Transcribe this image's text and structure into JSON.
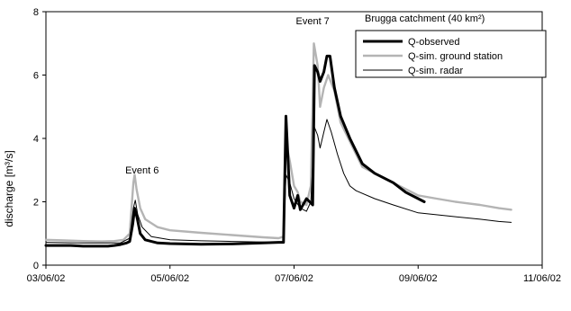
{
  "chart_data": {
    "type": "line",
    "title": "",
    "annotation": "Brugga catchment (40 km²)",
    "xlabel": "",
    "ylabel": "discharge [m³/s]",
    "x_ticks": [
      "03/06/02",
      "05/06/02",
      "07/06/02",
      "09/06/02",
      "11/06/02"
    ],
    "y_ticks": [
      "0",
      "2",
      "4",
      "6",
      "8"
    ],
    "xlim": [
      0,
      8
    ],
    "ylim": [
      0,
      8
    ],
    "x_unit": "days since 03/06/02",
    "grid": false,
    "legend_position": "top-right",
    "events": [
      {
        "label": "Event 6",
        "x": 1.55,
        "y": 2.9
      },
      {
        "label": "Event 7",
        "x": 4.3,
        "y": 7.6
      }
    ],
    "series": [
      {
        "name": "Q-observed",
        "color": "#000000",
        "style": "thick",
        "points": [
          [
            0,
            0.62
          ],
          [
            0.4,
            0.62
          ],
          [
            0.6,
            0.6
          ],
          [
            0.8,
            0.6
          ],
          [
            1.0,
            0.6
          ],
          [
            1.1,
            0.62
          ],
          [
            1.2,
            0.65
          ],
          [
            1.3,
            0.7
          ],
          [
            1.35,
            0.75
          ],
          [
            1.4,
            1.3
          ],
          [
            1.43,
            1.8
          ],
          [
            1.47,
            1.5
          ],
          [
            1.52,
            1.0
          ],
          [
            1.6,
            0.8
          ],
          [
            1.8,
            0.7
          ],
          [
            2.0,
            0.68
          ],
          [
            2.5,
            0.66
          ],
          [
            3.0,
            0.67
          ],
          [
            3.5,
            0.7
          ],
          [
            3.75,
            0.72
          ],
          [
            3.83,
            0.72
          ],
          [
            3.87,
            4.7
          ],
          [
            3.93,
            2.2
          ],
          [
            4.0,
            1.8
          ],
          [
            4.06,
            2.2
          ],
          [
            4.1,
            1.75
          ],
          [
            4.2,
            2.1
          ],
          [
            4.3,
            1.9
          ],
          [
            4.33,
            6.3
          ],
          [
            4.38,
            6.1
          ],
          [
            4.42,
            5.8
          ],
          [
            4.48,
            6.1
          ],
          [
            4.53,
            6.6
          ],
          [
            4.58,
            6.6
          ],
          [
            4.65,
            5.6
          ],
          [
            4.75,
            4.7
          ],
          [
            4.9,
            4.0
          ],
          [
            5.1,
            3.2
          ],
          [
            5.3,
            2.9
          ],
          [
            5.6,
            2.6
          ],
          [
            5.8,
            2.3
          ],
          [
            6.0,
            2.1
          ],
          [
            6.1,
            2.0
          ]
        ]
      },
      {
        "name": "Q-sim. ground station",
        "color": "#b4b4b4",
        "style": "medium",
        "points": [
          [
            0,
            0.8
          ],
          [
            0.3,
            0.78
          ],
          [
            0.6,
            0.76
          ],
          [
            0.9,
            0.75
          ],
          [
            1.1,
            0.76
          ],
          [
            1.25,
            0.8
          ],
          [
            1.35,
            1.0
          ],
          [
            1.41,
            2.6
          ],
          [
            1.43,
            2.85
          ],
          [
            1.46,
            2.4
          ],
          [
            1.52,
            1.8
          ],
          [
            1.6,
            1.45
          ],
          [
            1.8,
            1.2
          ],
          [
            2.0,
            1.1
          ],
          [
            2.5,
            1.02
          ],
          [
            3.0,
            0.95
          ],
          [
            3.5,
            0.88
          ],
          [
            3.75,
            0.85
          ],
          [
            3.83,
            0.9
          ],
          [
            3.87,
            3.9
          ],
          [
            3.93,
            3.3
          ],
          [
            4.0,
            2.5
          ],
          [
            4.06,
            2.3
          ],
          [
            4.1,
            2.0
          ],
          [
            4.2,
            1.9
          ],
          [
            4.27,
            2.5
          ],
          [
            4.32,
            7.0
          ],
          [
            4.38,
            6.3
          ],
          [
            4.42,
            5.0
          ],
          [
            4.48,
            5.6
          ],
          [
            4.55,
            6.0
          ],
          [
            4.65,
            5.5
          ],
          [
            4.75,
            4.5
          ],
          [
            4.9,
            3.9
          ],
          [
            5.1,
            3.1
          ],
          [
            5.3,
            2.9
          ],
          [
            5.6,
            2.6
          ],
          [
            6.0,
            2.2
          ],
          [
            6.3,
            2.1
          ],
          [
            6.6,
            2.0
          ],
          [
            7.0,
            1.9
          ],
          [
            7.3,
            1.8
          ],
          [
            7.5,
            1.75
          ]
        ]
      },
      {
        "name": "Q-sim. radar",
        "color": "#000000",
        "style": "thin",
        "points": [
          [
            0,
            0.72
          ],
          [
            0.5,
            0.7
          ],
          [
            1.0,
            0.7
          ],
          [
            1.2,
            0.7
          ],
          [
            1.35,
            0.85
          ],
          [
            1.41,
            1.8
          ],
          [
            1.44,
            2.05
          ],
          [
            1.48,
            1.6
          ],
          [
            1.55,
            1.2
          ],
          [
            1.7,
            0.9
          ],
          [
            2.0,
            0.8
          ],
          [
            2.5,
            0.77
          ],
          [
            3.0,
            0.75
          ],
          [
            3.5,
            0.73
          ],
          [
            3.75,
            0.72
          ],
          [
            3.83,
            0.75
          ],
          [
            3.87,
            2.85
          ],
          [
            3.93,
            2.6
          ],
          [
            4.0,
            2.1
          ],
          [
            4.1,
            1.8
          ],
          [
            4.2,
            1.7
          ],
          [
            4.27,
            2.0
          ],
          [
            4.33,
            4.35
          ],
          [
            4.38,
            4.1
          ],
          [
            4.42,
            3.7
          ],
          [
            4.48,
            4.2
          ],
          [
            4.53,
            4.6
          ],
          [
            4.6,
            4.2
          ],
          [
            4.7,
            3.5
          ],
          [
            4.8,
            2.9
          ],
          [
            4.9,
            2.5
          ],
          [
            5.0,
            2.35
          ],
          [
            5.3,
            2.1
          ],
          [
            5.6,
            1.9
          ],
          [
            6.0,
            1.65
          ],
          [
            6.5,
            1.55
          ],
          [
            7.0,
            1.45
          ],
          [
            7.3,
            1.38
          ],
          [
            7.5,
            1.35
          ]
        ]
      }
    ]
  }
}
